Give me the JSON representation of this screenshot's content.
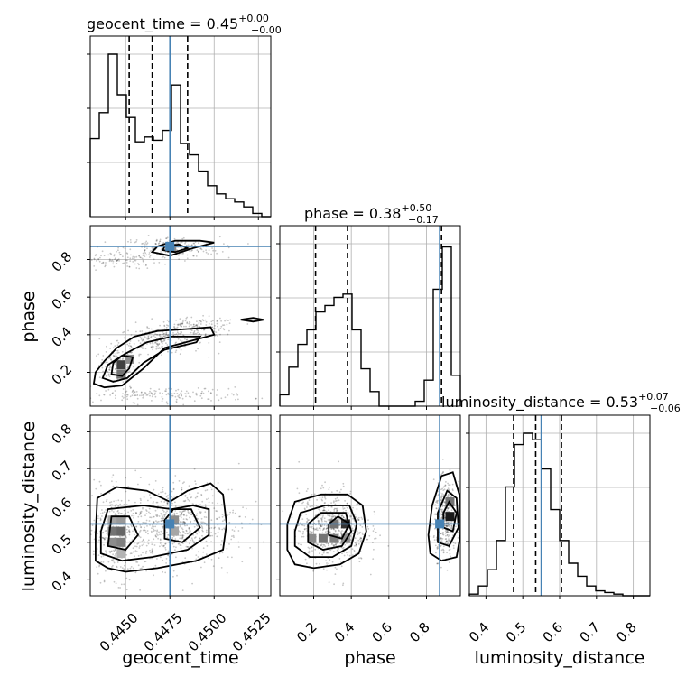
{
  "chart_data": {
    "type": "corner",
    "parameters": [
      "geocent_time",
      "phase",
      "luminosity_distance"
    ],
    "titles": {
      "geocent_time": {
        "prefix": "geocent_time = 0.45",
        "plus": "+0.00",
        "minus": "−0.00"
      },
      "phase": {
        "prefix": "phase = 0.38",
        "plus": "+0.50",
        "minus": "−0.17"
      },
      "luminosity_distance": {
        "prefix": "luminosity_distance = 0.53",
        "plus": "+0.07",
        "minus": "−0.06"
      }
    },
    "axis_labels": {
      "geocent_time": "geocent_time",
      "phase": "phase",
      "luminosity_distance": "luminosity_distance"
    },
    "ranges": {
      "geocent_time": [
        0.443,
        0.4532
      ],
      "phase": [
        0.02,
        0.98
      ],
      "luminosity_distance": [
        0.355,
        0.845
      ]
    },
    "ticks": {
      "geocent_time": {
        "values": [
          0.445,
          0.4475,
          0.45,
          0.4525
        ],
        "labels": [
          "0.4450",
          "0.4475",
          "0.4500",
          "0.4525"
        ]
      },
      "phase": {
        "values": [
          0.2,
          0.4,
          0.6,
          0.8
        ],
        "labels": [
          "0.2",
          "0.4",
          "0.6",
          "0.8"
        ]
      },
      "luminosity_distance": {
        "values": [
          0.4,
          0.5,
          0.6,
          0.7,
          0.8
        ],
        "labels": [
          "0.4",
          "0.5",
          "0.6",
          "0.7",
          "0.8"
        ]
      }
    },
    "truths": {
      "geocent_time": 0.4475,
      "phase": 0.87,
      "luminosity_distance": 0.55
    },
    "quantiles": {
      "geocent_time": [
        0.4452,
        0.4465,
        0.4485
      ],
      "phase": [
        0.21,
        0.38,
        0.88
      ],
      "luminosity_distance": [
        0.475,
        0.535,
        0.605
      ]
    },
    "histograms": {
      "geocent_time": {
        "edges": [
          0.443,
          0.44351,
          0.44402,
          0.44453,
          0.44504,
          0.44555,
          0.44606,
          0.44657,
          0.44708,
          0.44759,
          0.4481,
          0.44861,
          0.44912,
          0.44963,
          0.45014,
          0.45065,
          0.45116,
          0.45167,
          0.45218,
          0.45269,
          0.4532
        ],
        "counts": [
          0.48,
          0.64,
          1.0,
          0.75,
          0.61,
          0.46,
          0.49,
          0.47,
          0.53,
          0.81,
          0.45,
          0.38,
          0.28,
          0.19,
          0.14,
          0.11,
          0.09,
          0.06,
          0.02,
          0.0
        ]
      },
      "phase": {
        "edges": [
          0.02,
          0.068,
          0.116,
          0.164,
          0.212,
          0.26,
          0.308,
          0.356,
          0.404,
          0.452,
          0.5,
          0.548,
          0.596,
          0.644,
          0.692,
          0.74,
          0.788,
          0.836,
          0.884,
          0.932,
          0.98
        ],
        "counts": [
          0.07,
          0.24,
          0.38,
          0.47,
          0.58,
          0.62,
          0.67,
          0.69,
          0.47,
          0.23,
          0.09,
          0.0,
          0.0,
          0.0,
          0.0,
          0.03,
          0.16,
          0.72,
          0.98,
          0.19
        ]
      },
      "luminosity_distance": {
        "edges": [
          0.355,
          0.3795,
          0.404,
          0.4285,
          0.453,
          0.4775,
          0.502,
          0.5265,
          0.551,
          0.5755,
          0.6,
          0.6245,
          0.649,
          0.6735,
          0.698,
          0.7225,
          0.747,
          0.7715,
          0.796,
          0.8205,
          0.845
        ],
        "counts": [
          0.01,
          0.06,
          0.16,
          0.34,
          0.67,
          0.93,
          1.0,
          0.96,
          0.78,
          0.53,
          0.34,
          0.2,
          0.12,
          0.06,
          0.03,
          0.02,
          0.01,
          0.0,
          0.0,
          0.0
        ]
      }
    },
    "panels_2d": [
      {
        "x": "geocent_time",
        "y": "phase",
        "clusters": [
          {
            "cx": 0.4445,
            "cy": 0.24,
            "sx": 0.0005,
            "sy": 0.045,
            "n": 150
          },
          {
            "cx": 0.447,
            "cy": 0.37,
            "sx": 0.0012,
            "sy": 0.035,
            "n": 220
          },
          {
            "cx": 0.449,
            "cy": 0.44,
            "sx": 0.0012,
            "sy": 0.025,
            "n": 160
          },
          {
            "cx": 0.4475,
            "cy": 0.86,
            "sx": 0.0014,
            "sy": 0.03,
            "n": 220
          },
          {
            "cx": 0.444,
            "cy": 0.8,
            "sx": 0.0015,
            "sy": 0.025,
            "n": 120
          },
          {
            "cx": 0.447,
            "cy": 0.08,
            "sx": 0.0025,
            "sy": 0.02,
            "n": 180
          }
        ],
        "bins": [
          {
            "x": 0.44475,
            "y": 0.24,
            "shade": 0.75
          },
          {
            "x": 0.44475,
            "y": 0.19,
            "shade": 0.55
          },
          {
            "x": 0.4452,
            "y": 0.27,
            "shade": 0.45
          },
          {
            "x": 0.4476,
            "y": 0.86,
            "shade": 0.45
          }
        ],
        "contours": [
          [
            [
              0.4432,
              0.14
            ],
            [
              0.4438,
              0.12
            ],
            [
              0.4448,
              0.13
            ],
            [
              0.446,
              0.22
            ],
            [
              0.4472,
              0.33
            ],
            [
              0.4488,
              0.37
            ],
            [
              0.45,
              0.4
            ],
            [
              0.4498,
              0.44
            ],
            [
              0.4484,
              0.43
            ],
            [
              0.4468,
              0.42
            ],
            [
              0.4455,
              0.39
            ],
            [
              0.4445,
              0.33
            ],
            [
              0.4438,
              0.26
            ],
            [
              0.4433,
              0.2
            ]
          ],
          [
            [
              0.4437,
              0.17
            ],
            [
              0.4443,
              0.15
            ],
            [
              0.4451,
              0.17
            ],
            [
              0.446,
              0.25
            ],
            [
              0.4472,
              0.32
            ],
            [
              0.449,
              0.36
            ],
            [
              0.4492,
              0.39
            ],
            [
              0.4476,
              0.39
            ],
            [
              0.4462,
              0.36
            ],
            [
              0.445,
              0.3
            ],
            [
              0.444,
              0.24
            ]
          ],
          [
            [
              0.4442,
              0.19
            ],
            [
              0.4448,
              0.18
            ],
            [
              0.4452,
              0.22
            ],
            [
              0.4454,
              0.28
            ],
            [
              0.4448,
              0.29
            ],
            [
              0.4443,
              0.25
            ]
          ],
          [
            [
              0.4515,
              0.48
            ],
            [
              0.4522,
              0.47
            ],
            [
              0.4528,
              0.48
            ],
            [
              0.4522,
              0.49
            ]
          ],
          [
            [
              0.4465,
              0.84
            ],
            [
              0.4475,
              0.82
            ],
            [
              0.4488,
              0.86
            ],
            [
              0.45,
              0.89
            ],
            [
              0.4492,
              0.9
            ],
            [
              0.4478,
              0.9
            ],
            [
              0.4468,
              0.87
            ]
          ],
          [
            [
              0.4471,
              0.85
            ],
            [
              0.4478,
              0.84
            ],
            [
              0.4485,
              0.86
            ],
            [
              0.448,
              0.88
            ],
            [
              0.4472,
              0.87
            ]
          ]
        ]
      },
      {
        "x": "geocent_time",
        "y": "luminosity_distance",
        "clusters": [
          {
            "cx": 0.4447,
            "cy": 0.52,
            "sx": 0.001,
            "sy": 0.06,
            "n": 420
          },
          {
            "cx": 0.4476,
            "cy": 0.55,
            "sx": 0.001,
            "sy": 0.055,
            "n": 380
          },
          {
            "cx": 0.4495,
            "cy": 0.55,
            "sx": 0.0012,
            "sy": 0.06,
            "n": 200
          }
        ],
        "bins": [
          {
            "x": 0.44425,
            "y": 0.56,
            "shade": 0.35
          },
          {
            "x": 0.44475,
            "y": 0.56,
            "shade": 0.4
          },
          {
            "x": 0.44425,
            "y": 0.53,
            "shade": 0.55
          },
          {
            "x": 0.44475,
            "y": 0.53,
            "shade": 0.6
          },
          {
            "x": 0.44425,
            "y": 0.5,
            "shade": 0.45
          },
          {
            "x": 0.44475,
            "y": 0.5,
            "shade": 0.5
          },
          {
            "x": 0.44475,
            "y": 0.47,
            "shade": 0.3
          },
          {
            "x": 0.44775,
            "y": 0.56,
            "shade": 0.45
          },
          {
            "x": 0.44775,
            "y": 0.53,
            "shade": 0.35
          }
        ],
        "contours": [
          [
            [
              0.4433,
              0.45
            ],
            [
              0.444,
              0.43
            ],
            [
              0.445,
              0.42
            ],
            [
              0.4468,
              0.43
            ],
            [
              0.449,
              0.45
            ],
            [
              0.4505,
              0.48
            ],
            [
              0.4507,
              0.55
            ],
            [
              0.4505,
              0.63
            ],
            [
              0.4498,
              0.66
            ],
            [
              0.4485,
              0.64
            ],
            [
              0.4475,
              0.61
            ],
            [
              0.4462,
              0.64
            ],
            [
              0.4445,
              0.65
            ],
            [
              0.4434,
              0.62
            ],
            [
              0.4433,
              0.52
            ]
          ],
          [
            [
              0.4436,
              0.47
            ],
            [
              0.4448,
              0.45
            ],
            [
              0.4465,
              0.46
            ],
            [
              0.4485,
              0.48
            ],
            [
              0.4497,
              0.52
            ],
            [
              0.4497,
              0.59
            ],
            [
              0.4488,
              0.6
            ],
            [
              0.4476,
              0.59
            ],
            [
              0.446,
              0.6
            ],
            [
              0.444,
              0.59
            ],
            [
              0.4436,
              0.53
            ]
          ],
          [
            [
              0.444,
              0.49
            ],
            [
              0.445,
              0.48
            ],
            [
              0.4457,
              0.52
            ],
            [
              0.4452,
              0.57
            ],
            [
              0.4442,
              0.57
            ]
          ],
          [
            [
              0.4472,
              0.51
            ],
            [
              0.4482,
              0.5
            ],
            [
              0.4492,
              0.54
            ],
            [
              0.4487,
              0.59
            ],
            [
              0.4477,
              0.59
            ],
            [
              0.4472,
              0.56
            ]
          ]
        ]
      },
      {
        "x": "phase",
        "y": "luminosity_distance",
        "clusters": [
          {
            "cx": 0.3,
            "cy": 0.54,
            "sx": 0.09,
            "sy": 0.05,
            "n": 650
          },
          {
            "cx": 0.9,
            "cy": 0.56,
            "sx": 0.03,
            "sy": 0.05,
            "n": 380
          }
        ],
        "bins": [
          {
            "x": 0.19,
            "y": 0.51,
            "shade": 0.45
          },
          {
            "x": 0.25,
            "y": 0.51,
            "shade": 0.55
          },
          {
            "x": 0.31,
            "y": 0.51,
            "shade": 0.5
          },
          {
            "x": 0.31,
            "y": 0.55,
            "shade": 0.55
          },
          {
            "x": 0.37,
            "y": 0.55,
            "shade": 0.8
          },
          {
            "x": 0.37,
            "y": 0.51,
            "shade": 0.45
          },
          {
            "x": 0.925,
            "y": 0.57,
            "shade": 0.9
          },
          {
            "x": 0.925,
            "y": 0.61,
            "shade": 0.55
          }
        ],
        "contours": [
          [
            [
              0.06,
              0.48
            ],
            [
              0.1,
              0.44
            ],
            [
              0.2,
              0.43
            ],
            [
              0.34,
              0.44
            ],
            [
              0.44,
              0.47
            ],
            [
              0.48,
              0.53
            ],
            [
              0.46,
              0.6
            ],
            [
              0.38,
              0.63
            ],
            [
              0.24,
              0.63
            ],
            [
              0.1,
              0.61
            ],
            [
              0.06,
              0.55
            ]
          ],
          [
            [
              0.1,
              0.49
            ],
            [
              0.18,
              0.46
            ],
            [
              0.3,
              0.46
            ],
            [
              0.4,
              0.49
            ],
            [
              0.43,
              0.55
            ],
            [
              0.39,
              0.6
            ],
            [
              0.26,
              0.6
            ],
            [
              0.13,
              0.58
            ],
            [
              0.1,
              0.53
            ]
          ],
          [
            [
              0.17,
              0.5
            ],
            [
              0.25,
              0.48
            ],
            [
              0.35,
              0.49
            ],
            [
              0.4,
              0.53
            ],
            [
              0.37,
              0.58
            ],
            [
              0.24,
              0.58
            ],
            [
              0.17,
              0.55
            ]
          ],
          [
            [
              0.28,
              0.52
            ],
            [
              0.35,
              0.51
            ],
            [
              0.39,
              0.55
            ],
            [
              0.33,
              0.57
            ],
            [
              0.28,
              0.55
            ]
          ],
          [
            [
              0.82,
              0.47
            ],
            [
              0.88,
              0.45
            ],
            [
              0.96,
              0.46
            ],
            [
              0.98,
              0.52
            ],
            [
              0.98,
              0.62
            ],
            [
              0.94,
              0.69
            ],
            [
              0.88,
              0.68
            ],
            [
              0.83,
              0.6
            ],
            [
              0.81,
              0.52
            ]
          ],
          [
            [
              0.86,
              0.5
            ],
            [
              0.92,
              0.49
            ],
            [
              0.97,
              0.54
            ],
            [
              0.96,
              0.62
            ],
            [
              0.91,
              0.64
            ],
            [
              0.86,
              0.58
            ]
          ],
          [
            [
              0.89,
              0.54
            ],
            [
              0.94,
              0.53
            ],
            [
              0.96,
              0.58
            ],
            [
              0.92,
              0.61
            ],
            [
              0.89,
              0.58
            ]
          ]
        ]
      }
    ]
  },
  "colors": {
    "truth": "#4682b4",
    "axes": "#000000",
    "grid": "#b0b0b0",
    "scatter": "#000000"
  }
}
